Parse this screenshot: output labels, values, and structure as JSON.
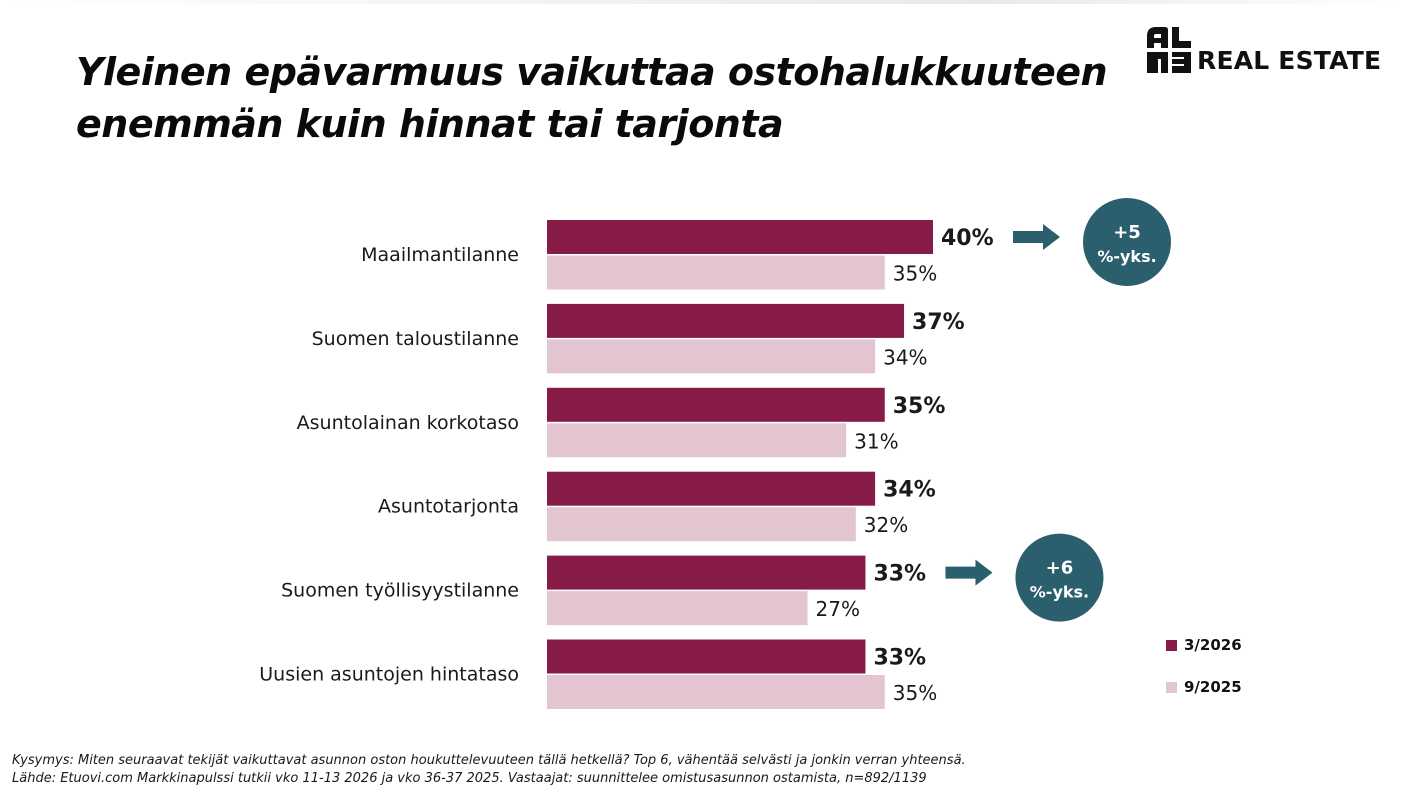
{
  "header": {
    "title_line1": "Yleinen epävarmuus vaikuttaa ostohalukkuuteen",
    "title_line2": "enemmän kuin hinnat tai tarjonta"
  },
  "logo": {
    "mark_top": "al",
    "mark_bottom": "ma",
    "text": "REAL ESTATE"
  },
  "chart_data": {
    "type": "bar",
    "orientation": "horizontal",
    "categories": [
      "Maailmantilanne",
      "Suomen taloustilanne",
      "Asuntolainan korkotaso",
      "Asuntotarjonta",
      "Suomen työllisyystilanne",
      "Uusien asuntojen hintataso"
    ],
    "series": [
      {
        "name": "3/2026",
        "values": [
          40,
          37,
          35,
          34,
          33,
          33
        ],
        "color": "#861B48",
        "label_suffix": "%"
      },
      {
        "name": "9/2025",
        "values": [
          35,
          34,
          31,
          32,
          27,
          35
        ],
        "color": "#E3C5D2",
        "label_suffix": "%"
      }
    ],
    "xlim": [
      0,
      40
    ],
    "annotations": [
      {
        "category_index": 0,
        "line1": "+5",
        "line2": "%-yks."
      },
      {
        "category_index": 4,
        "line1": "+6",
        "line2": "%-yks."
      }
    ],
    "annotation_color": "#2B5F6E",
    "legend_position": "bottom-right"
  },
  "footer": {
    "question": "Kysymys: Miten seuraavat tekijät vaikuttavat asunnon oston houkuttelevuuteen tällä hetkellä? Top 6, vähentää selvästi ja jonkin verran yhteensä.",
    "source": "Lähde: Etuovi.com Markkinapulssi tutkii vko 11-13 2026 ja vko 36-37 2025. Vastaajat: suunnittelee omistusasunnon ostamista, n=892/1139"
  }
}
